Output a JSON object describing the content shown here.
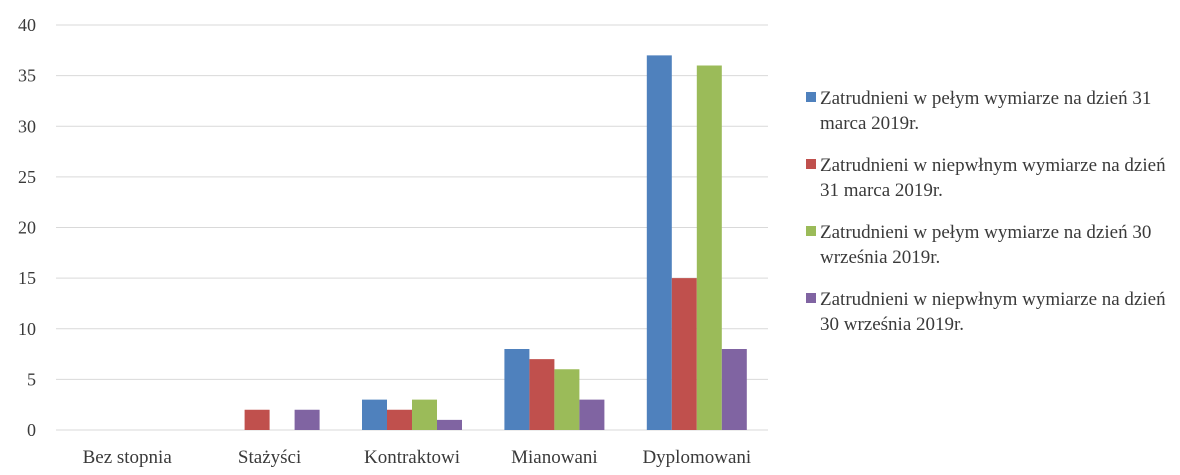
{
  "chart_data": {
    "type": "bar",
    "categories": [
      "Bez stopnia",
      "Stażyści",
      "Kontraktowi",
      "Mianowani",
      "Dyplomowani"
    ],
    "series": [
      {
        "name": "Zatrudnieni w pełym wymiarze na dzień 31 marca 2019r.",
        "color": "#4f81bd",
        "values": [
          0,
          0,
          3,
          8,
          37
        ]
      },
      {
        "name": "Zatrudnieni w niepwłnym wymiarze na dzień 31 marca 2019r.",
        "color": "#c0504d",
        "values": [
          0,
          2,
          2,
          7,
          15
        ]
      },
      {
        "name": "Zatrudnieni w pełym wymiarze na dzień 30 września 2019r.",
        "color": "#9bbb59",
        "values": [
          0,
          0,
          3,
          6,
          36
        ]
      },
      {
        "name": "Zatrudnieni w niepwłnym wymiarze na dzień 30 września 2019r.",
        "color": "#8064a2",
        "values": [
          0,
          2,
          1,
          3,
          8
        ]
      }
    ],
    "ylim": [
      0,
      40
    ],
    "yticks": [
      0,
      5,
      10,
      15,
      20,
      25,
      30,
      35,
      40
    ],
    "grid": true,
    "legend_position": "right",
    "title": "",
    "xlabel": "",
    "ylabel": ""
  }
}
